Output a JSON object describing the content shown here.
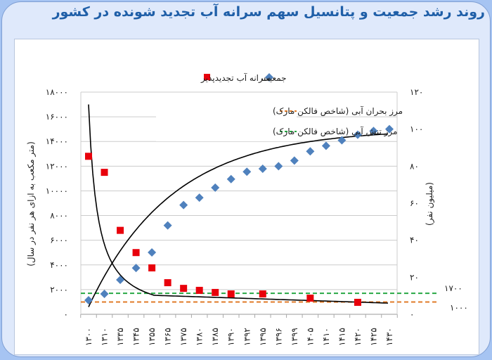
{
  "title": "روند رشد جمعیت و پتانسیل سهم سرانه آب تجدید شونده در کشور",
  "legend": {
    "population": "جمعیت",
    "water": "سرانه آب تجدیدپذیر",
    "crisis": "مرز بحران آبی (شاخص فالکن مارک)",
    "stress": "مرز تنش آبی (شاخص فالکن مارک)"
  },
  "axes": {
    "left_label": "(متر مکعب به ازای هر نفر در سال)",
    "right_label": "(میلیون نفر)",
    "left_ticks": [
      "۱۸۰۰۰",
      "۱۶۰۰۰",
      "۱۴۰۰۰",
      "۱۲۰۰۰",
      "۱۰۰۰۰",
      "۸۰۰۰",
      "۶۰۰۰",
      "۴۰۰۰",
      "۲۰۰۰",
      "۰"
    ],
    "right_ticks": [
      "۱۲۰",
      "۱۰۰",
      "۸۰",
      "۶۰",
      "۴۰",
      "۲۰",
      "۰"
    ],
    "stress_value_label": "۱۷۰۰",
    "crisis_value_label": "۱۰۰۰"
  },
  "colors": {
    "population": "#4f81bd",
    "water": "#e8000b",
    "stress": "#27a844",
    "crisis": "#e07b28",
    "title": "#1f5fa8"
  },
  "chart_data": {
    "type": "scatter",
    "title": "روند رشد جمعیت و پتانسیل سهم سرانه آب تجدید شونده در کشور",
    "x": [
      "۱۳۰۰",
      "۱۳۱۰",
      "۱۳۳۵",
      "۱۳۴۵",
      "۱۳۵۵",
      "۱۳۶۵",
      "۱۳۷۵",
      "۱۳۸۰",
      "۱۳۸۵",
      "۱۳۹۰",
      "۱۳۹۲",
      "۱۳۹۵",
      "۱۳۹۶",
      "۱۳۹۹",
      "۱۴۰۵",
      "۱۴۱۰",
      "۱۴۱۵",
      "۱۴۲۰",
      "۱۴۲۵",
      "۱۴۳۰"
    ],
    "x_numeric": [
      1300,
      1310,
      1335,
      1345,
      1355,
      1365,
      1375,
      1380,
      1385,
      1390,
      1392,
      1395,
      1396,
      1399,
      1405,
      1410,
      1415,
      1420,
      1425,
      1430
    ],
    "series": [
      {
        "name": "جمعیت",
        "axis": "right",
        "unit": "million people",
        "marker": "diamond",
        "values": [
          7.6,
          11,
          18.6,
          25,
          33.4,
          48,
          59,
          63,
          68.4,
          73,
          77,
          78.6,
          80,
          83,
          88,
          91,
          94,
          97,
          99,
          100
        ]
      },
      {
        "name": "سرانه آب تجدیدپذیر",
        "axis": "left",
        "unit": "m3 per person per year",
        "marker": "square",
        "values": [
          12800,
          11500,
          6800,
          5000,
          3760,
          2560,
          2100,
          1940,
          1770,
          1650,
          null,
          1650,
          null,
          null,
          1310,
          null,
          null,
          970,
          null,
          null
        ]
      }
    ],
    "reference_lines": [
      {
        "name": "مرز تنش آبی (شاخص فالکن مارک)",
        "value": 1700,
        "style": "dashed",
        "color": "#27a844"
      },
      {
        "name": "مرز بحران آبی (شاخص فالکن مارک)",
        "value": 1000,
        "style": "dashed",
        "color": "#e07b28"
      }
    ],
    "trendlines": [
      "power fit on water series",
      "polynomial/logistic fit on population series"
    ],
    "ylabel_left": "(متر مکعب به ازای هر نفر در سال)",
    "ylabel_right": "(میلیون نفر)",
    "ylim_left": [
      0,
      18000
    ],
    "ylim_right": [
      0,
      120
    ],
    "grid": true,
    "legend_position": "top"
  }
}
